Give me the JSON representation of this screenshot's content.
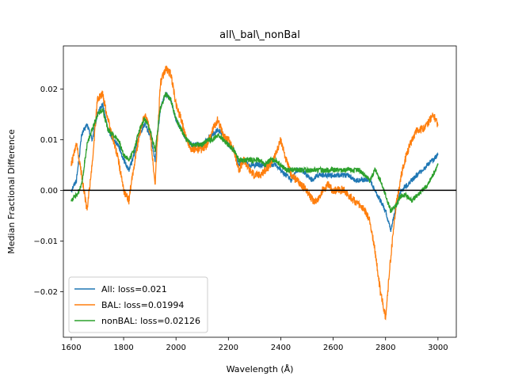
{
  "chart_data": {
    "type": "line",
    "title": "all\\_bal\\_nonBal",
    "xlabel": "Wavelength (Å)",
    "ylabel": "Median Fractional Difference",
    "xlim": [
      1570,
      3070
    ],
    "ylim": [
      -0.029,
      0.0285
    ],
    "xticks": [
      1600,
      1800,
      2000,
      2200,
      2400,
      2600,
      2800,
      3000
    ],
    "yticks": [
      -0.02,
      -0.01,
      0.0,
      0.01,
      0.02
    ],
    "ytick_labels": [
      "−0.02",
      "−0.01",
      "0.00",
      "0.01",
      "0.02"
    ],
    "grid": false,
    "legend": "lower-left",
    "reference_line": 0.0,
    "series": [
      {
        "name": "All: loss=0.021",
        "color": "#1f77b4",
        "x": [
          1600,
          1620,
          1640,
          1660,
          1680,
          1700,
          1720,
          1740,
          1760,
          1780,
          1800,
          1820,
          1840,
          1860,
          1880,
          1900,
          1920,
          1940,
          1960,
          1980,
          2000,
          2020,
          2040,
          2060,
          2080,
          2100,
          2120,
          2140,
          2160,
          2180,
          2200,
          2220,
          2240,
          2260,
          2280,
          2300,
          2320,
          2340,
          2360,
          2380,
          2400,
          2420,
          2440,
          2460,
          2480,
          2500,
          2520,
          2540,
          2560,
          2580,
          2600,
          2620,
          2640,
          2660,
          2680,
          2700,
          2720,
          2740,
          2760,
          2780,
          2800,
          2820,
          2840,
          2860,
          2880,
          2900,
          2920,
          2940,
          2960,
          2980,
          3000
        ],
        "y": [
          0.0,
          0.002,
          0.011,
          0.013,
          0.01,
          0.015,
          0.017,
          0.012,
          0.01,
          0.009,
          0.006,
          0.004,
          0.007,
          0.011,
          0.013,
          0.011,
          0.006,
          0.016,
          0.019,
          0.018,
          0.014,
          0.012,
          0.01,
          0.009,
          0.009,
          0.009,
          0.01,
          0.011,
          0.012,
          0.011,
          0.009,
          0.008,
          0.005,
          0.006,
          0.005,
          0.005,
          0.005,
          0.005,
          0.005,
          0.005,
          0.004,
          0.003,
          0.002,
          0.004,
          0.004,
          0.003,
          0.002,
          0.003,
          0.003,
          0.003,
          0.003,
          0.003,
          0.003,
          0.003,
          0.002,
          0.002,
          0.002,
          0.002,
          0.0,
          -0.002,
          -0.004,
          -0.008,
          -0.003,
          0.0,
          0.001,
          0.002,
          0.003,
          0.004,
          0.005,
          0.006,
          0.007
        ]
      },
      {
        "name": "BAL: loss=0.01994",
        "color": "#ff7f0e",
        "x": [
          1600,
          1620,
          1640,
          1660,
          1680,
          1700,
          1720,
          1740,
          1760,
          1780,
          1800,
          1820,
          1840,
          1860,
          1880,
          1900,
          1920,
          1940,
          1960,
          1980,
          2000,
          2020,
          2040,
          2060,
          2080,
          2100,
          2120,
          2140,
          2160,
          2180,
          2200,
          2220,
          2240,
          2260,
          2280,
          2300,
          2320,
          2340,
          2360,
          2380,
          2400,
          2420,
          2440,
          2460,
          2480,
          2500,
          2520,
          2540,
          2560,
          2580,
          2600,
          2620,
          2640,
          2660,
          2680,
          2700,
          2720,
          2740,
          2760,
          2780,
          2800,
          2820,
          2840,
          2860,
          2880,
          2900,
          2920,
          2940,
          2960,
          2980,
          3000
        ],
        "y": [
          0.005,
          0.009,
          0.003,
          -0.004,
          0.005,
          0.018,
          0.019,
          0.014,
          0.01,
          0.006,
          0.0,
          -0.002,
          0.005,
          0.011,
          0.015,
          0.012,
          0.001,
          0.021,
          0.024,
          0.023,
          0.017,
          0.014,
          0.01,
          0.008,
          0.008,
          0.008,
          0.009,
          0.012,
          0.014,
          0.011,
          0.01,
          0.008,
          0.004,
          0.006,
          0.004,
          0.003,
          0.003,
          0.004,
          0.005,
          0.007,
          0.01,
          0.006,
          0.003,
          0.002,
          0.001,
          0.0,
          -0.002,
          -0.002,
          0.0,
          0.001,
          0.0,
          0.0,
          0.0,
          -0.001,
          -0.002,
          -0.003,
          -0.004,
          -0.006,
          -0.012,
          -0.02,
          -0.025,
          -0.013,
          -0.003,
          0.003,
          0.007,
          0.01,
          0.012,
          0.012,
          0.013,
          0.015,
          0.013
        ]
      },
      {
        "name": "nonBAL: loss=0.02126",
        "color": "#2ca02c",
        "x": [
          1600,
          1620,
          1640,
          1660,
          1680,
          1700,
          1720,
          1740,
          1760,
          1780,
          1800,
          1820,
          1840,
          1860,
          1880,
          1900,
          1920,
          1940,
          1960,
          1980,
          2000,
          2020,
          2040,
          2060,
          2080,
          2100,
          2120,
          2140,
          2160,
          2180,
          2200,
          2220,
          2240,
          2260,
          2280,
          2300,
          2320,
          2340,
          2360,
          2380,
          2400,
          2420,
          2440,
          2460,
          2480,
          2500,
          2520,
          2540,
          2560,
          2580,
          2600,
          2620,
          2640,
          2660,
          2680,
          2700,
          2720,
          2740,
          2760,
          2780,
          2800,
          2820,
          2840,
          2860,
          2880,
          2900,
          2920,
          2940,
          2960,
          2980,
          3000
        ],
        "y": [
          -0.002,
          -0.001,
          0.001,
          0.009,
          0.012,
          0.015,
          0.016,
          0.012,
          0.011,
          0.01,
          0.007,
          0.006,
          0.008,
          0.012,
          0.014,
          0.012,
          0.008,
          0.016,
          0.019,
          0.018,
          0.014,
          0.012,
          0.01,
          0.009,
          0.009,
          0.009,
          0.01,
          0.01,
          0.011,
          0.01,
          0.009,
          0.008,
          0.006,
          0.006,
          0.006,
          0.006,
          0.006,
          0.005,
          0.006,
          0.006,
          0.005,
          0.004,
          0.004,
          0.004,
          0.004,
          0.004,
          0.004,
          0.004,
          0.004,
          0.004,
          0.004,
          0.004,
          0.004,
          0.004,
          0.004,
          0.004,
          0.003,
          0.002,
          0.004,
          0.002,
          -0.001,
          -0.004,
          -0.003,
          -0.001,
          -0.001,
          -0.002,
          -0.001,
          0.0,
          0.001,
          0.003,
          0.005
        ]
      }
    ]
  }
}
